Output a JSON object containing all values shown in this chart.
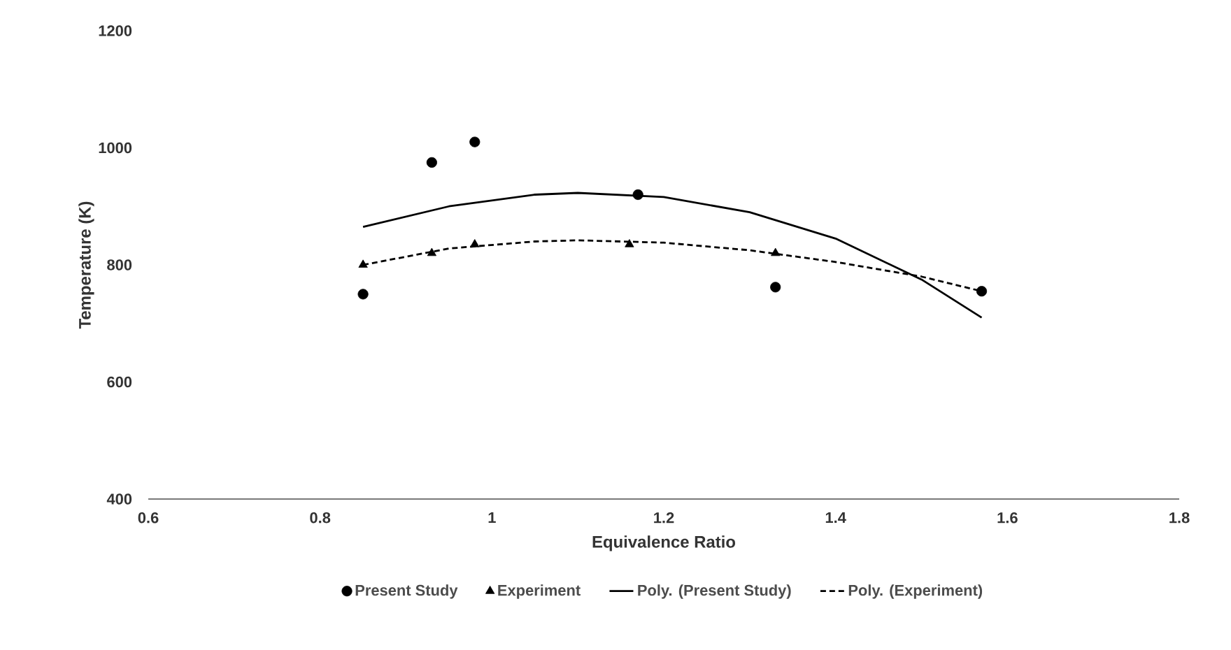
{
  "chart_data": {
    "type": "scatter",
    "xlabel": "Equivalence Ratio",
    "ylabel": "Temperature (K)",
    "xlim": [
      0.6,
      1.8
    ],
    "ylim": [
      400,
      1200
    ],
    "xticks": [
      0.6,
      0.8,
      1,
      1.2,
      1.4,
      1.6,
      1.8
    ],
    "yticks": [
      400,
      600,
      800,
      1000,
      1200
    ],
    "grid": false,
    "legend": "bottom",
    "series": [
      {
        "name": "Present Study",
        "marker": "circle",
        "color": "#000000",
        "x": [
          0.85,
          0.93,
          0.98,
          1.17,
          1.33,
          1.57
        ],
        "values": [
          750,
          975,
          1010,
          920,
          762,
          755
        ]
      },
      {
        "name": "Experiment",
        "marker": "triangle",
        "color": "#000000",
        "x": [
          0.85,
          0.93,
          0.98,
          1.16,
          1.33
        ],
        "values": [
          800,
          820,
          835,
          835,
          820
        ]
      },
      {
        "name": "Poly. (Present Study)",
        "type": "line",
        "marker": "none",
        "line_style": "solid",
        "color": "#000000",
        "x": [
          0.85,
          0.95,
          1.05,
          1.1,
          1.2,
          1.3,
          1.4,
          1.5,
          1.57
        ],
        "values": [
          865,
          900,
          920,
          923,
          916,
          890,
          845,
          775,
          710
        ]
      },
      {
        "name": "Poly. (Experiment)",
        "type": "line",
        "marker": "none",
        "line_style": "dashed",
        "color": "#000000",
        "x": [
          0.85,
          0.95,
          1.05,
          1.1,
          1.2,
          1.3,
          1.4,
          1.5,
          1.57
        ],
        "values": [
          800,
          828,
          840,
          842,
          838,
          825,
          805,
          780,
          755
        ]
      }
    ]
  }
}
